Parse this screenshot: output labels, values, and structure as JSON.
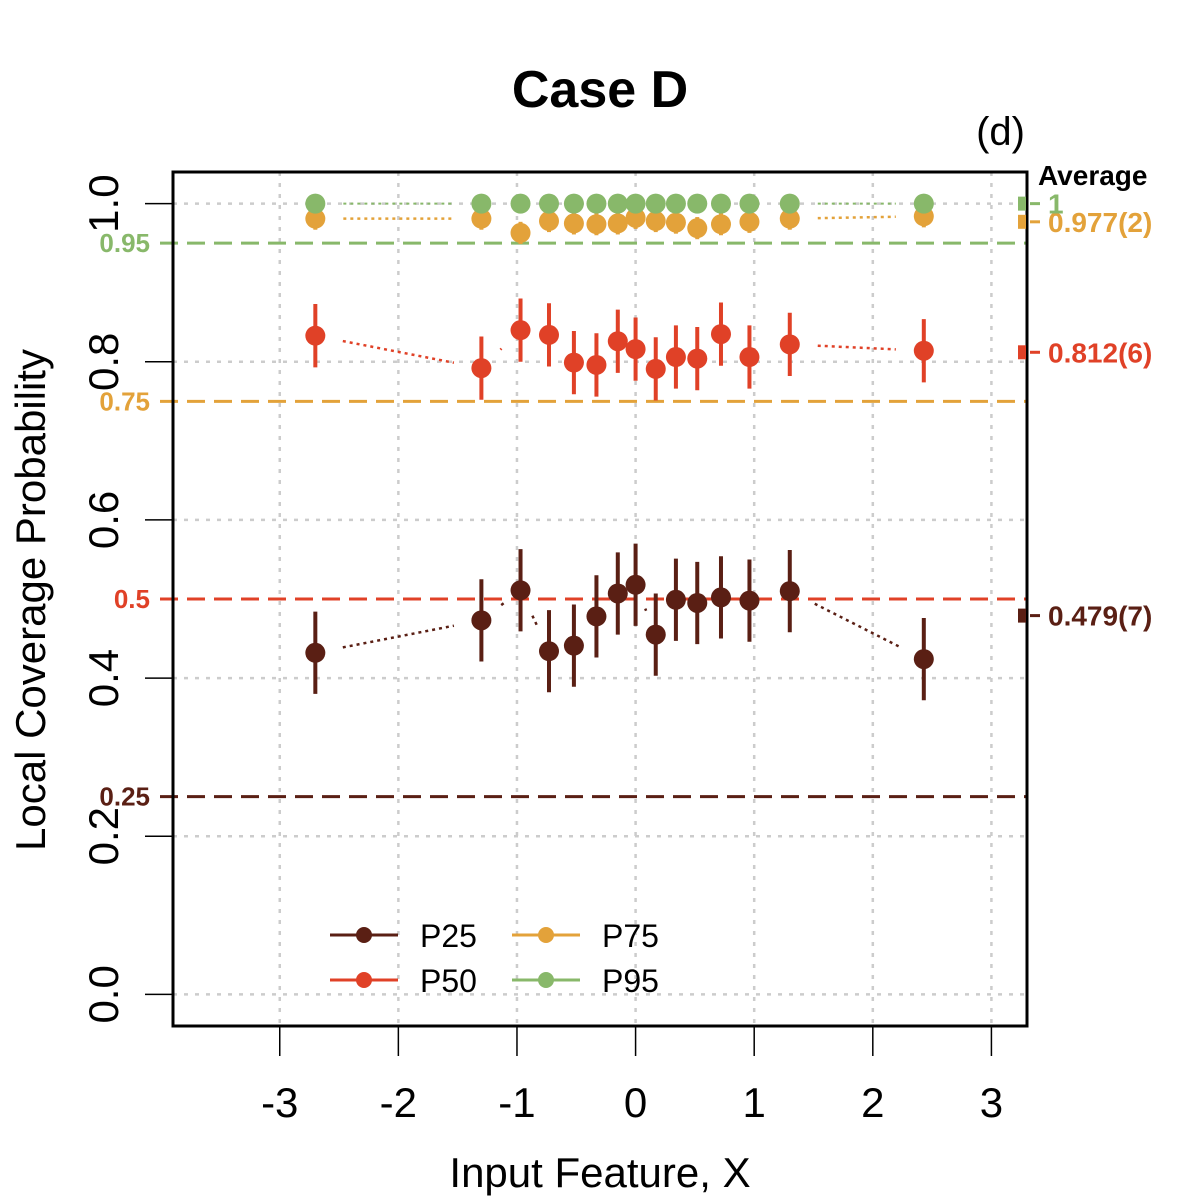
{
  "chart_data": {
    "type": "scatter",
    "title": "Case D",
    "panel_label": "(d)",
    "xlabel": "Input Feature, X",
    "ylabel": "Local Coverage Probability",
    "xlim": [
      -3.9,
      3.3
    ],
    "ylim": [
      -0.04,
      1.04
    ],
    "xticks": [
      -3,
      -2,
      -1,
      0,
      1,
      2,
      3
    ],
    "yticks": [
      0.0,
      0.2,
      0.4,
      0.6,
      0.8,
      1.0
    ],
    "xtick_labels": [
      "-3",
      "-2",
      "-1",
      "0",
      "1",
      "2",
      "3"
    ],
    "ytick_labels": [
      "0.0",
      "0.2",
      "0.4",
      "0.6",
      "0.8",
      "1.0"
    ],
    "grid": true,
    "legend_position": "bottom-left",
    "average_header": "Average",
    "reference_lines": [
      {
        "y": 0.25,
        "label": "0.25",
        "color": "#5a1f14"
      },
      {
        "y": 0.5,
        "label": "0.5",
        "color": "#e04127"
      },
      {
        "y": 0.75,
        "label": "0.75",
        "color": "#e3a23a"
      },
      {
        "y": 0.95,
        "label": "0.95",
        "color": "#88b86a"
      }
    ],
    "series": [
      {
        "name": "P25",
        "color": "#5a1f14",
        "x": [
          -2.7,
          -1.3,
          -0.97,
          -0.73,
          -0.52,
          -0.33,
          -0.15,
          0.0,
          0.17,
          0.34,
          0.52,
          0.72,
          0.96,
          1.3,
          2.43
        ],
        "y": [
          0.432,
          0.473,
          0.511,
          0.434,
          0.441,
          0.478,
          0.507,
          0.518,
          0.455,
          0.499,
          0.495,
          0.502,
          0.498,
          0.51,
          0.424
        ],
        "err": [
          0.052,
          0.052,
          0.052,
          0.052,
          0.052,
          0.052,
          0.052,
          0.052,
          0.052,
          0.052,
          0.052,
          0.052,
          0.052,
          0.052,
          0.052
        ],
        "average_label": "0.479(7)",
        "average": 0.479
      },
      {
        "name": "P50",
        "color": "#e04127",
        "x": [
          -2.7,
          -1.3,
          -0.97,
          -0.73,
          -0.52,
          -0.33,
          -0.15,
          0.0,
          0.17,
          0.34,
          0.52,
          0.72,
          0.96,
          1.3,
          2.43
        ],
        "y": [
          0.833,
          0.792,
          0.84,
          0.834,
          0.799,
          0.796,
          0.826,
          0.816,
          0.791,
          0.806,
          0.804,
          0.835,
          0.806,
          0.822,
          0.814
        ],
        "err": [
          0.04,
          0.04,
          0.04,
          0.04,
          0.04,
          0.04,
          0.04,
          0.04,
          0.04,
          0.04,
          0.04,
          0.04,
          0.04,
          0.04,
          0.04
        ],
        "average_label": "0.812(6)",
        "average": 0.812
      },
      {
        "name": "P75",
        "color": "#e3a23a",
        "x": [
          -2.7,
          -1.3,
          -0.97,
          -0.73,
          -0.52,
          -0.33,
          -0.15,
          0.0,
          0.17,
          0.34,
          0.52,
          0.72,
          0.96,
          1.3,
          2.43
        ],
        "y": [
          0.981,
          0.981,
          0.963,
          0.978,
          0.975,
          0.974,
          0.975,
          0.982,
          0.978,
          0.976,
          0.969,
          0.974,
          0.977,
          0.981,
          0.984
        ],
        "err": [
          0.014,
          0.014,
          0.014,
          0.014,
          0.014,
          0.014,
          0.014,
          0.014,
          0.014,
          0.014,
          0.014,
          0.014,
          0.014,
          0.014,
          0.014
        ],
        "average_label": "0.977(2)",
        "average": 0.977
      },
      {
        "name": "P95",
        "color": "#88b86a",
        "x": [
          -2.7,
          -1.3,
          -0.97,
          -0.73,
          -0.52,
          -0.33,
          -0.15,
          0.0,
          0.17,
          0.34,
          0.52,
          0.72,
          0.96,
          1.3,
          2.43
        ],
        "y": [
          1.0,
          1.0,
          1.0,
          1.0,
          1.0,
          1.0,
          1.0,
          1.0,
          1.0,
          1.0,
          1.0,
          1.0,
          1.0,
          1.0,
          1.0
        ],
        "err": [
          0,
          0,
          0,
          0,
          0,
          0,
          0,
          0,
          0,
          0,
          0,
          0,
          0,
          0,
          0
        ],
        "average_label": "1",
        "average": 1.0
      }
    ]
  }
}
